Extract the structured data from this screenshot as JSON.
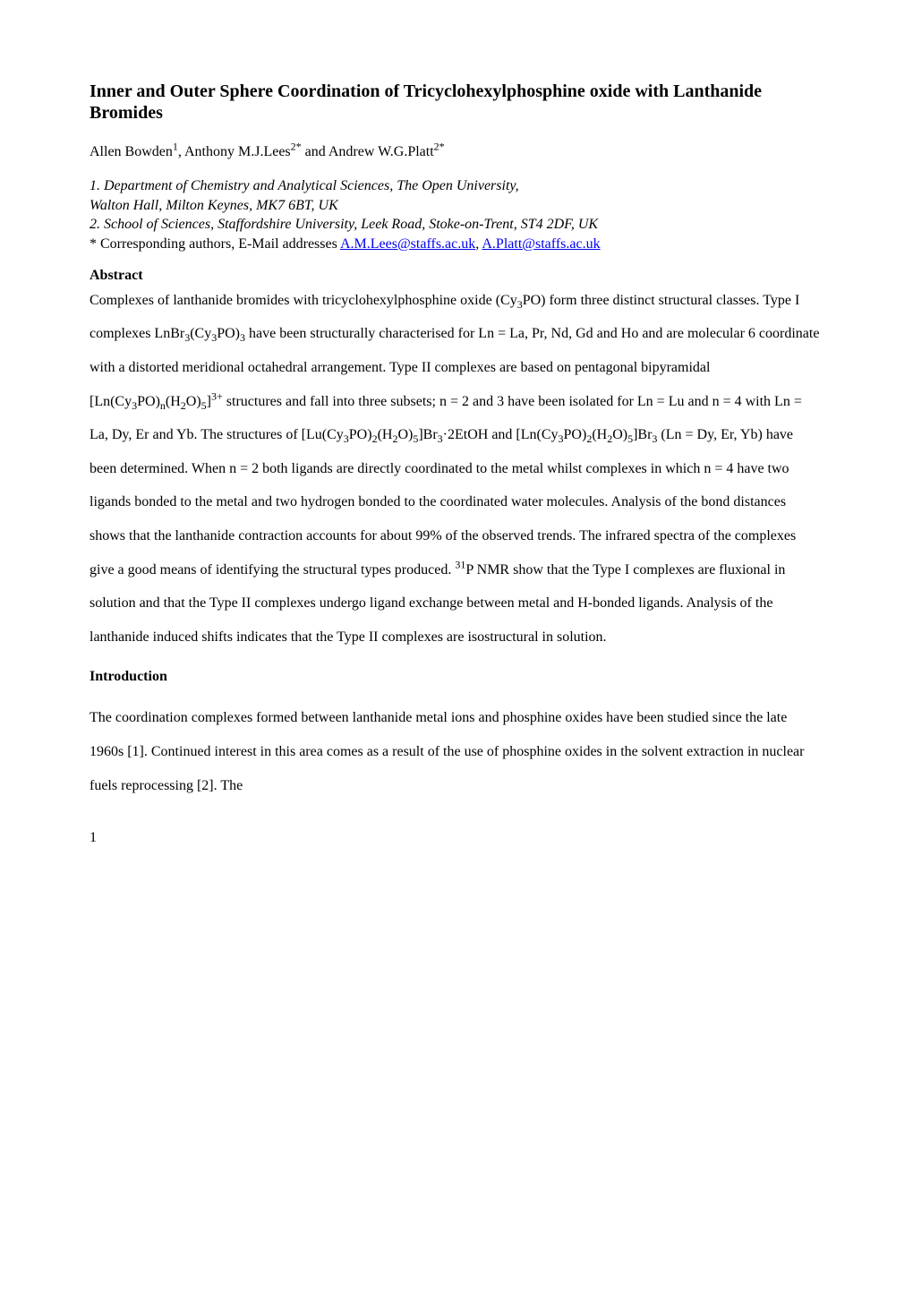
{
  "title": "Inner and Outer Sphere Coordination of Tricyclohexylphosphine oxide with Lanthanide Bromides",
  "authors": {
    "a1_name": "Allen Bowden",
    "a1_sup": "1",
    "a2_name": "Anthony M.J.Lees",
    "a2_sup": "2*",
    "a3_name": "Andrew W.G.Platt",
    "a3_sup": "2*",
    "sep": ", ",
    "and": " and "
  },
  "affiliations": {
    "line1": "1. Department of Chemistry and Analytical Sciences, The Open University,",
    "line2": "Walton Hall, Milton Keynes, MK7 6BT, UK",
    "line3": "2. School of Sciences, Staffordshire University, Leek Road, Stoke-on-Trent, ST4 2DF, UK"
  },
  "corresponding": {
    "prefix": "* Corresponding authors, E-Mail addresses ",
    "email1": "A.M.Lees@staffs.ac.uk",
    "email_sep": ", ",
    "email2": "A.Platt@staffs.ac.uk"
  },
  "abstract": {
    "heading": "Abstract",
    "t1": "Complexes of lanthanide bromides with tricyclohexylphosphine oxide (Cy",
    "t2": "PO) form three distinct structural classes. Type I complexes LnBr",
    "t3": "(Cy",
    "t4": "PO)",
    "t5": " have been structurally characterised for Ln = La, Pr, Nd, Gd and Ho and are molecular 6 coordinate with a distorted meridional octahedral arrangement. Type II complexes are based on pentagonal bipyramidal [Ln(Cy",
    "t6": "PO)",
    "t7": "(H",
    "t8": "O)",
    "t9": "]",
    "t10": " structures and fall into three subsets; n = 2 and 3 have been isolated for Ln = Lu and n = 4 with Ln = La, Dy, Er and Yb. The structures of [Lu(Cy",
    "t11": "PO)",
    "t12": "(H",
    "t13": "O)",
    "t14": "]Br",
    "t15": "·2EtOH and [Ln(Cy",
    "t16": "PO)",
    "t17": "(H",
    "t18": "O)",
    "t19": "]Br",
    "t20": " (Ln = Dy, Er, Yb) have been determined. When n = 2 both ligands are directly coordinated to the metal whilst complexes in which n = 4 have two ligands bonded to the metal and two hydrogen bonded to the coordinated water molecules. Analysis of the bond distances shows that the lanthanide contraction accounts for about 99% of the observed trends. The infrared spectra of the complexes give a good means of identifying the structural types produced. ",
    "t21": "P NMR show that the Type I complexes are fluxional in solution and that the Type II complexes undergo ligand exchange between metal and H-bonded ligands. Analysis of the lanthanide induced shifts indicates that the Type II complexes are isostructural in solution.",
    "sub3": "3",
    "sub2": "2",
    "subn": "n",
    "sub5": "5",
    "sup3plus": "3+",
    "sup31": "31"
  },
  "introduction": {
    "heading": "Introduction",
    "body": "The coordination complexes formed between lanthanide metal ions and phosphine oxides have been studied since the late 1960s [1]. Continued interest in this area comes as a result of the use of phosphine oxides in the solvent extraction in nuclear fuels reprocessing [2].  The"
  },
  "page_number": "1",
  "colors": {
    "text": "#000000",
    "link": "#0000ee",
    "background": "#ffffff"
  },
  "typography": {
    "font_family": "Times New Roman",
    "title_fontsize": 20,
    "body_fontsize": 16,
    "title_weight": "bold",
    "heading_weight": "bold",
    "abstract_line_height": 2.35
  }
}
